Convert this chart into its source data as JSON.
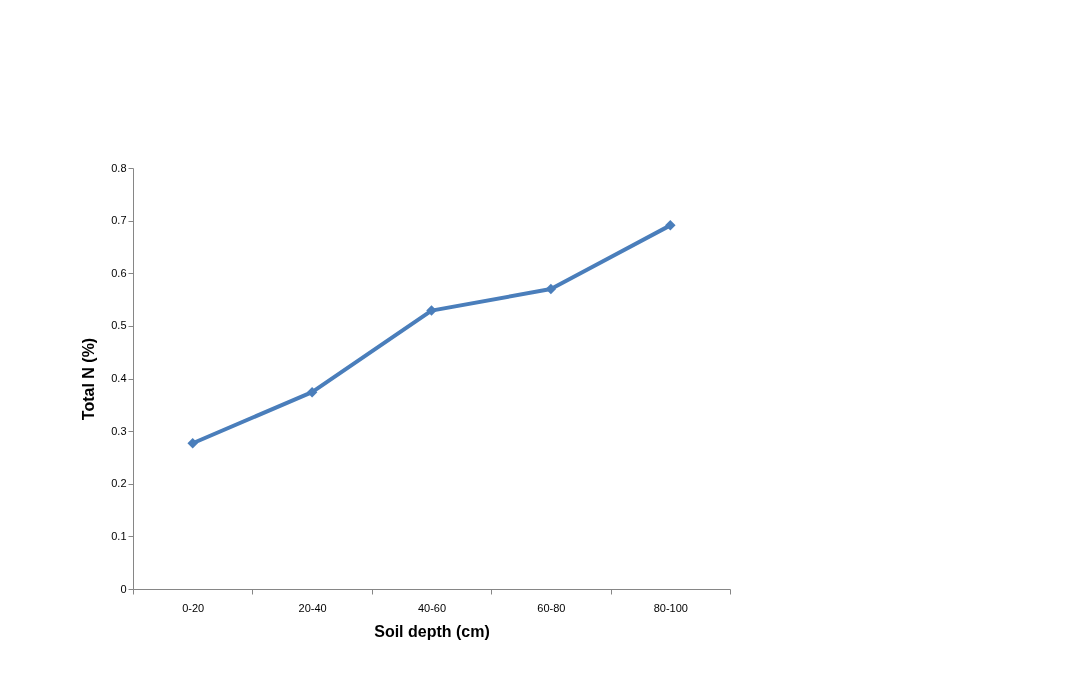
{
  "chart_data": {
    "type": "line",
    "xlabel": "Soil depth (cm)",
    "ylabel": "Total N (%)",
    "categories": [
      "0-20",
      "20-40",
      "40-60",
      "60-80",
      "80-100"
    ],
    "series": [
      {
        "color": "#4a7ebb",
        "values": [
          0.277,
          0.374,
          0.529,
          0.57,
          0.691
        ]
      }
    ],
    "ylim": [
      0,
      0.8
    ],
    "yticks": [
      0,
      0.1,
      0.2,
      0.3,
      0.4,
      0.5,
      0.6,
      0.7,
      0.8
    ],
    "grid": false,
    "legend": false,
    "marker": "diamond",
    "line_style": "solid"
  }
}
